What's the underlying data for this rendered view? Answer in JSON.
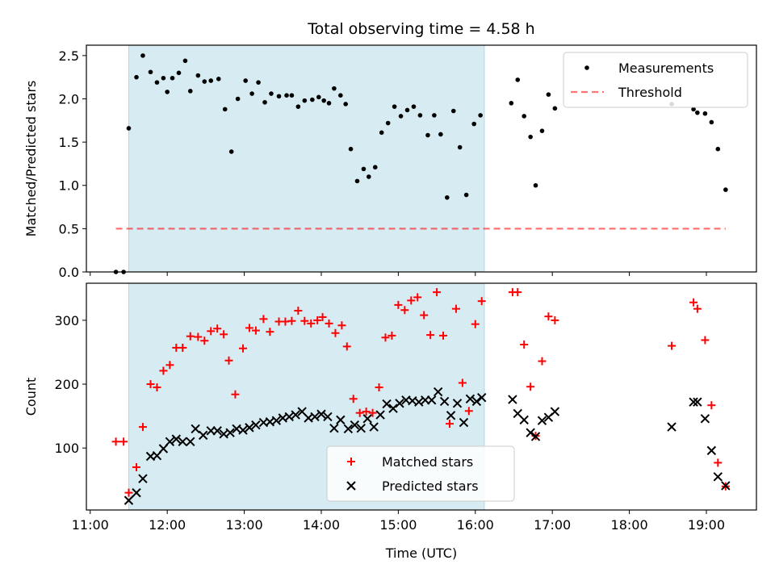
{
  "title": "Total observing time = 4.58 h",
  "colors": {
    "shade": "#add8e6",
    "measurements": "#000000",
    "threshold": "#ff0000",
    "matched": "#ff0000",
    "predicted": "#000000"
  },
  "chart_data": [
    {
      "type": "scatter",
      "ylabel": "Matched/Predicted stars",
      "xlabel": "",
      "xlim": [
        10.95,
        19.65
      ],
      "ylim": [
        0,
        2.62
      ],
      "x_ticks": [
        11,
        12,
        13,
        14,
        15,
        16,
        17,
        18,
        19
      ],
      "y_ticks": [
        {
          "v": 0.0,
          "label": "0.0"
        },
        {
          "v": 0.5,
          "label": "0.5"
        },
        {
          "v": 1.0,
          "label": "1.0"
        },
        {
          "v": 1.5,
          "label": "1.5"
        },
        {
          "v": 2.0,
          "label": "2.0"
        },
        {
          "v": 2.5,
          "label": "2.5"
        }
      ],
      "shaded_span": [
        "11:30",
        "16:07"
      ],
      "legend": {
        "placement": "top-right",
        "entries": [
          {
            "label": "Measurements"
          },
          {
            "label": "Threshold"
          }
        ]
      },
      "series": [
        {
          "name": "Measurements",
          "marker": "dot",
          "points": [
            [
              "11:20",
              0.0
            ],
            [
              "11:26",
              0.0
            ],
            [
              "11:30",
              1.66
            ],
            [
              "11:36",
              2.25
            ],
            [
              "11:41",
              2.5
            ],
            [
              "11:47",
              2.31
            ],
            [
              "11:52",
              2.19
            ],
            [
              "11:57",
              2.24
            ],
            [
              "12:00",
              2.08
            ],
            [
              "12:04",
              2.24
            ],
            [
              "12:09",
              2.3
            ],
            [
              "12:14",
              2.44
            ],
            [
              "12:18",
              2.09
            ],
            [
              "12:24",
              2.27
            ],
            [
              "12:29",
              2.2
            ],
            [
              "12:34",
              2.21
            ],
            [
              "12:40",
              2.23
            ],
            [
              "12:45",
              1.88
            ],
            [
              "12:50",
              1.39
            ],
            [
              "12:55",
              2.0
            ],
            [
              "13:01",
              2.21
            ],
            [
              "13:06",
              2.06
            ],
            [
              "13:11",
              2.19
            ],
            [
              "13:16",
              1.96
            ],
            [
              "13:21",
              2.06
            ],
            [
              "13:27",
              2.03
            ],
            [
              "13:33",
              2.04
            ],
            [
              "13:37",
              2.04
            ],
            [
              "13:42",
              1.91
            ],
            [
              "13:47",
              1.98
            ],
            [
              "13:53",
              1.99
            ],
            [
              "13:58",
              2.02
            ],
            [
              "14:02",
              1.98
            ],
            [
              "14:06",
              1.95
            ],
            [
              "14:10",
              2.12
            ],
            [
              "14:15",
              2.04
            ],
            [
              "14:19",
              1.94
            ],
            [
              "14:23",
              1.42
            ],
            [
              "14:28",
              1.05
            ],
            [
              "14:33",
              1.19
            ],
            [
              "14:37",
              1.1
            ],
            [
              "14:42",
              1.21
            ],
            [
              "14:47",
              1.61
            ],
            [
              "14:52",
              1.72
            ],
            [
              "14:57",
              1.91
            ],
            [
              "15:02",
              1.8
            ],
            [
              "15:07",
              1.87
            ],
            [
              "15:12",
              1.91
            ],
            [
              "15:17",
              1.81
            ],
            [
              "15:23",
              1.58
            ],
            [
              "15:28",
              1.81
            ],
            [
              "15:33",
              1.59
            ],
            [
              "15:38",
              0.86
            ],
            [
              "15:43",
              1.86
            ],
            [
              "15:48",
              1.44
            ],
            [
              "15:53",
              0.89
            ],
            [
              "15:59",
              1.71
            ],
            [
              "16:04",
              1.81
            ],
            [
              "16:28",
              1.95
            ],
            [
              "16:33",
              2.22
            ],
            [
              "16:38",
              1.8
            ],
            [
              "16:43",
              1.56
            ],
            [
              "16:47",
              1.0
            ],
            [
              "16:52",
              1.63
            ],
            [
              "16:57",
              2.05
            ],
            [
              "17:02",
              1.89
            ],
            [
              "18:33",
              1.94
            ],
            [
              "18:50",
              1.88
            ],
            [
              "18:53",
              1.84
            ],
            [
              "18:59",
              1.83
            ],
            [
              "19:04",
              1.73
            ],
            [
              "19:09",
              1.42
            ],
            [
              "19:15",
              0.95
            ]
          ]
        },
        {
          "name": "Threshold",
          "marker": "dashed-line",
          "points": [
            [
              "11:20",
              0.5
            ],
            [
              "19:15",
              0.5
            ]
          ]
        }
      ]
    },
    {
      "type": "scatter",
      "ylabel": "Count",
      "xlabel": "Time (UTC)",
      "xlim": [
        10.95,
        19.65
      ],
      "ylim": [
        3,
        358
      ],
      "x_ticks": [
        {
          "v": 11,
          "label": "11:00"
        },
        {
          "v": 12,
          "label": "12:00"
        },
        {
          "v": 13,
          "label": "13:00"
        },
        {
          "v": 14,
          "label": "14:00"
        },
        {
          "v": 15,
          "label": "15:00"
        },
        {
          "v": 16,
          "label": "16:00"
        },
        {
          "v": 17,
          "label": "17:00"
        },
        {
          "v": 18,
          "label": "18:00"
        },
        {
          "v": 19,
          "label": "19:00"
        }
      ],
      "y_ticks": [
        {
          "v": 100,
          "label": "100"
        },
        {
          "v": 200,
          "label": "200"
        },
        {
          "v": 300,
          "label": "300"
        }
      ],
      "shaded_span": [
        "11:30",
        "16:07"
      ],
      "legend": {
        "placement": "bottom-center",
        "entries": [
          {
            "label": "Matched stars"
          },
          {
            "label": "Predicted stars"
          }
        ]
      },
      "series": [
        {
          "name": "Matched stars",
          "marker": "plus",
          "points": [
            [
              "11:20",
              110
            ],
            [
              "11:26",
              110
            ],
            [
              "11:30",
              30
            ],
            [
              "11:36",
              70
            ],
            [
              "11:41",
              133
            ],
            [
              "11:47",
              200
            ],
            [
              "11:52",
              195
            ],
            [
              "11:57",
              221
            ],
            [
              "12:02",
              230
            ],
            [
              "12:07",
              257
            ],
            [
              "12:12",
              257
            ],
            [
              "12:18",
              275
            ],
            [
              "12:24",
              274
            ],
            [
              "12:29",
              268
            ],
            [
              "12:34",
              283
            ],
            [
              "12:39",
              287
            ],
            [
              "12:44",
              278
            ],
            [
              "12:48",
              237
            ],
            [
              "12:53",
              184
            ],
            [
              "12:59",
              256
            ],
            [
              "13:04",
              288
            ],
            [
              "13:09",
              284
            ],
            [
              "13:15",
              302
            ],
            [
              "13:20",
              282
            ],
            [
              "13:27",
              298
            ],
            [
              "13:32",
              298
            ],
            [
              "13:37",
              299
            ],
            [
              "13:42",
              315
            ],
            [
              "13:47",
              299
            ],
            [
              "13:52",
              295
            ],
            [
              "13:57",
              300
            ],
            [
              "14:01",
              305
            ],
            [
              "14:06",
              295
            ],
            [
              "14:11",
              280
            ],
            [
              "14:16",
              292
            ],
            [
              "14:20",
              259
            ],
            [
              "14:25",
              177
            ],
            [
              "14:30",
              155
            ],
            [
              "14:35",
              157
            ],
            [
              "14:40",
              155
            ],
            [
              "14:45",
              195
            ],
            [
              "14:50",
              273
            ],
            [
              "14:55",
              276
            ],
            [
              "15:00",
              324
            ],
            [
              "15:05",
              316
            ],
            [
              "15:10",
              331
            ],
            [
              "15:15",
              336
            ],
            [
              "15:20",
              308
            ],
            [
              "15:25",
              277
            ],
            [
              "15:30",
              344
            ],
            [
              "15:35",
              276
            ],
            [
              "15:40",
              138
            ],
            [
              "15:45",
              318
            ],
            [
              "15:50",
              202
            ],
            [
              "15:55",
              158
            ],
            [
              "16:00",
              294
            ],
            [
              "16:05",
              330
            ],
            [
              "16:29",
              344
            ],
            [
              "16:33",
              344
            ],
            [
              "16:38",
              262
            ],
            [
              "16:43",
              196
            ],
            [
              "16:47",
              119
            ],
            [
              "16:52",
              236
            ],
            [
              "16:57",
              306
            ],
            [
              "17:02",
              300
            ],
            [
              "18:33",
              260
            ],
            [
              "18:50",
              328
            ],
            [
              "18:53",
              318
            ],
            [
              "18:59",
              269
            ],
            [
              "19:04",
              167
            ],
            [
              "19:09",
              77
            ],
            [
              "19:15",
              40
            ]
          ]
        },
        {
          "name": "Predicted stars",
          "marker": "x",
          "points": [
            [
              "11:30",
              18
            ],
            [
              "11:36",
              30
            ],
            [
              "11:41",
              52
            ],
            [
              "11:47",
              87
            ],
            [
              "11:52",
              88
            ],
            [
              "11:57",
              99
            ],
            [
              "12:02",
              110
            ],
            [
              "12:07",
              114
            ],
            [
              "12:12",
              110
            ],
            [
              "12:18",
              110
            ],
            [
              "12:22",
              130
            ],
            [
              "12:28",
              120
            ],
            [
              "12:34",
              127
            ],
            [
              "12:39",
              127
            ],
            [
              "12:44",
              122
            ],
            [
              "12:49",
              124
            ],
            [
              "12:54",
              130
            ],
            [
              "12:59",
              128
            ],
            [
              "13:04",
              132
            ],
            [
              "13:09",
              136
            ],
            [
              "13:15",
              140
            ],
            [
              "13:20",
              141
            ],
            [
              "13:25",
              143
            ],
            [
              "13:30",
              147
            ],
            [
              "13:35",
              149
            ],
            [
              "13:40",
              152
            ],
            [
              "13:45",
              157
            ],
            [
              "13:50",
              147
            ],
            [
              "13:55",
              149
            ],
            [
              "14:00",
              153
            ],
            [
              "14:05",
              149
            ],
            [
              "14:10",
              131
            ],
            [
              "14:15",
              144
            ],
            [
              "14:21",
              130
            ],
            [
              "14:26",
              136
            ],
            [
              "14:31",
              131
            ],
            [
              "14:36",
              146
            ],
            [
              "14:41",
              133
            ],
            [
              "14:46",
              152
            ],
            [
              "14:51",
              169
            ],
            [
              "14:56",
              162
            ],
            [
              "15:01",
              170
            ],
            [
              "15:06",
              175
            ],
            [
              "15:11",
              174
            ],
            [
              "15:16",
              172
            ],
            [
              "15:21",
              175
            ],
            [
              "15:26",
              175
            ],
            [
              "15:31",
              188
            ],
            [
              "15:36",
              173
            ],
            [
              "15:41",
              151
            ],
            [
              "15:46",
              170
            ],
            [
              "15:51",
              140
            ],
            [
              "15:56",
              177
            ],
            [
              "16:01",
              173
            ],
            [
              "16:05",
              179
            ],
            [
              "16:29",
              176
            ],
            [
              "16:33",
              154
            ],
            [
              "16:38",
              144
            ],
            [
              "16:43",
              124
            ],
            [
              "16:47",
              118
            ],
            [
              "16:52",
              143
            ],
            [
              "16:57",
              148
            ],
            [
              "17:02",
              157
            ],
            [
              "18:33",
              133
            ],
            [
              "18:50",
              172
            ],
            [
              "18:53",
              172
            ],
            [
              "18:59",
              146
            ],
            [
              "19:04",
              96
            ],
            [
              "19:09",
              55
            ],
            [
              "19:15",
              41
            ]
          ]
        }
      ]
    }
  ]
}
